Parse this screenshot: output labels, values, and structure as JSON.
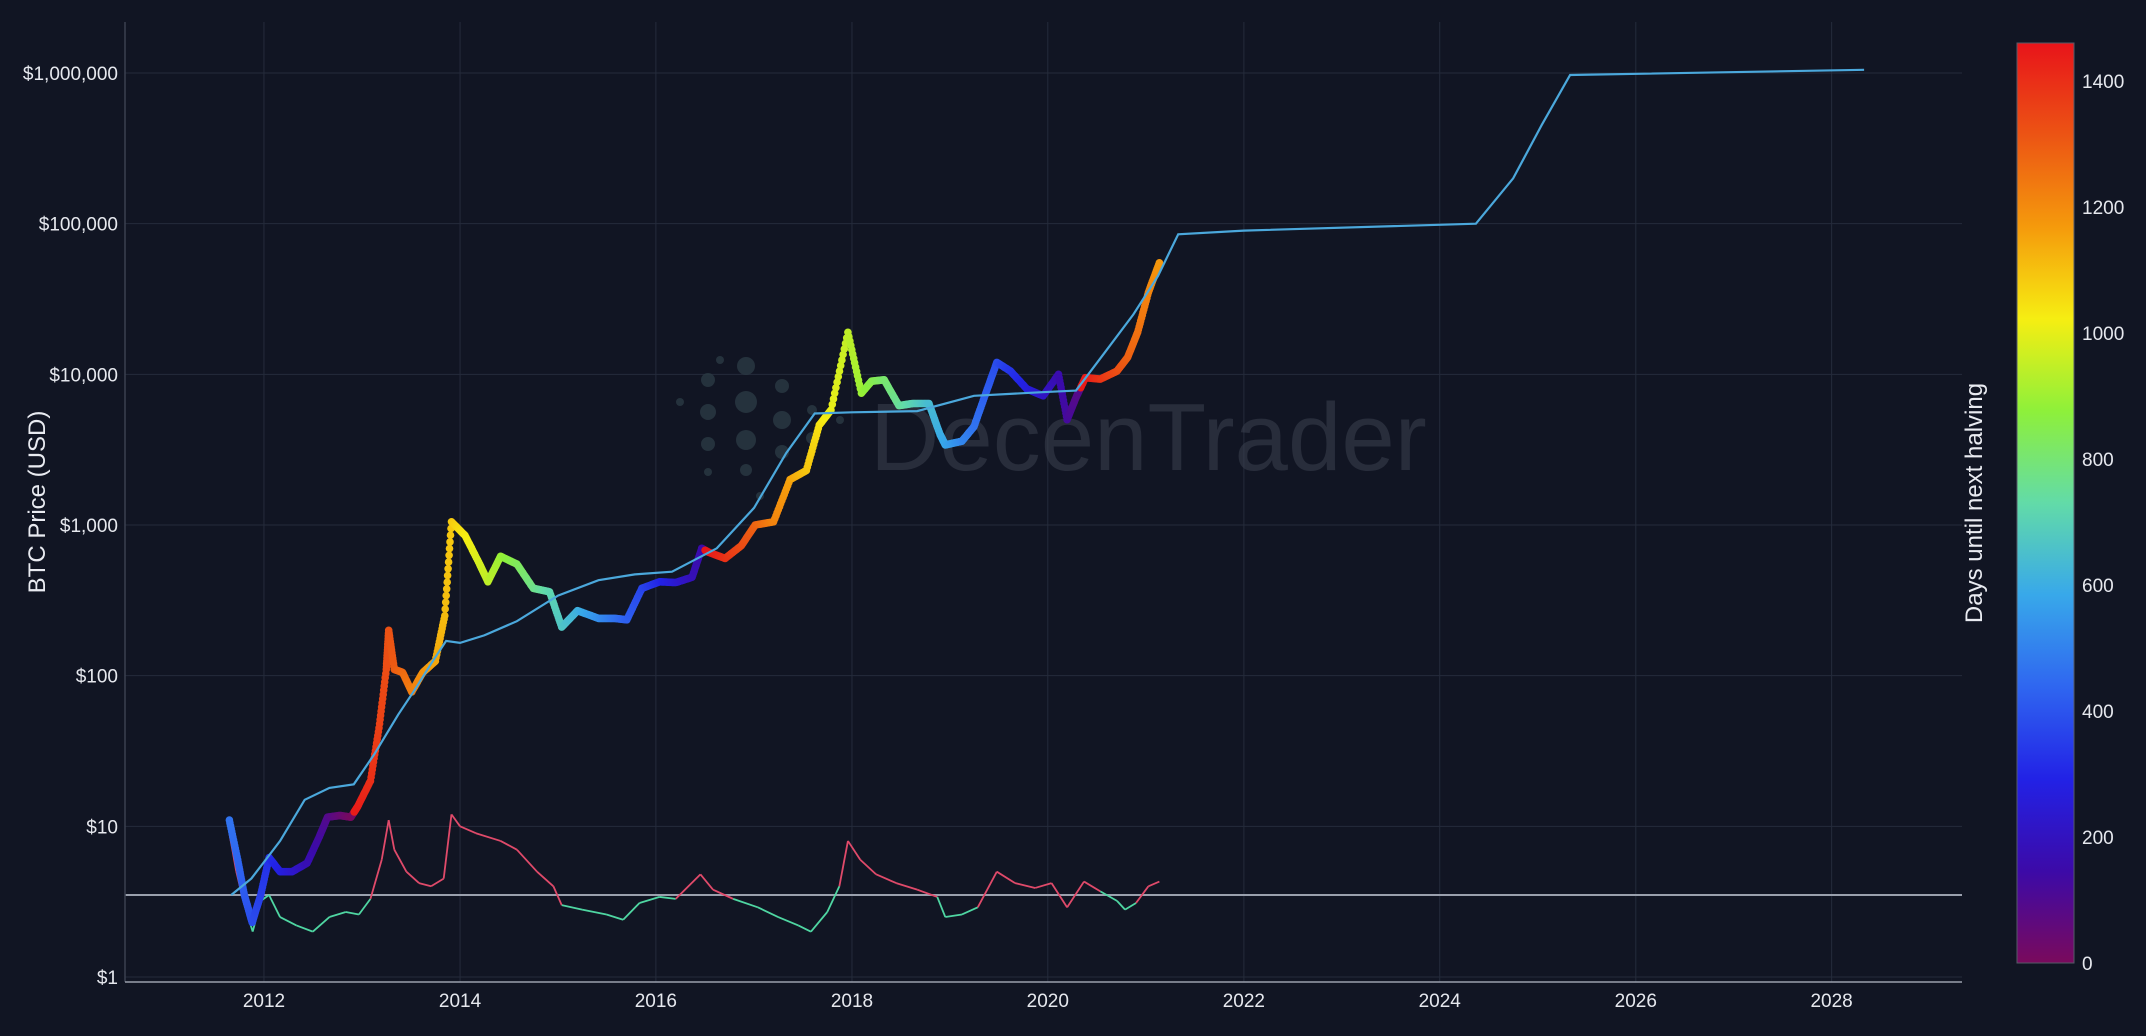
{
  "watermark": "DecenTrader",
  "chart_data": {
    "type": "scatter",
    "title": "",
    "ylabel": "BTC Price (USD)",
    "xlabel": "",
    "y_scale": "log",
    "ylim": [
      1,
      1000000
    ],
    "xlim": [
      "2010-08-01",
      "2029-05-01"
    ],
    "x_ticks": [
      "2012",
      "2014",
      "2016",
      "2018",
      "2020",
      "2022",
      "2024",
      "2026",
      "2028"
    ],
    "y_ticks": [
      "$1",
      "$10",
      "$100",
      "$1,000",
      "$10,000",
      "$100,000",
      "$1,000,000"
    ],
    "grid": true,
    "colorbar": {
      "title": "Days until next halving",
      "range": [
        0,
        1460
      ],
      "ticks": [
        "0",
        "200",
        "400",
        "600",
        "800",
        "1000",
        "1200",
        "1400"
      ],
      "colors": [
        "#7a0a5c",
        "#3c0aa8",
        "#2222e6",
        "#2f66f0",
        "#38a8ea",
        "#62dba8",
        "#8ef03a",
        "#f6ee12",
        "#f59a0c",
        "#ec5414",
        "#e8141a"
      ]
    },
    "reference_line": {
      "y": 3.5,
      "color": "#9aa0ad"
    },
    "series": [
      {
        "type": "scatter",
        "color_by": "days_until_next_halving",
        "points": [
          [
            "2011-08-25",
            11,
            470
          ],
          [
            "2011-09-25",
            6,
            440
          ],
          [
            "2011-10-20",
            3.5,
            415
          ],
          [
            "2011-11-18",
            2.3,
            385
          ],
          [
            "2011-12-20",
            3.5,
            355
          ],
          [
            "2012-01-20",
            6.2,
            320
          ],
          [
            "2012-03-01",
            5,
            280
          ],
          [
            "2012-04-15",
            5,
            235
          ],
          [
            "2012-06-10",
            5.7,
            175
          ],
          [
            "2012-07-25",
            8.5,
            130
          ],
          [
            "2012-08-25",
            11.5,
            95
          ],
          [
            "2012-10-10",
            11.8,
            50
          ],
          [
            "2012-11-20",
            11.5,
            10
          ],
          [
            "2012-12-15",
            13.5,
            1440
          ],
          [
            "2013-02-01",
            20,
            1400
          ],
          [
            "2013-03-05",
            45,
            1360
          ],
          [
            "2013-04-01",
            110,
            1330
          ],
          [
            "2013-04-10",
            200,
            1320
          ],
          [
            "2013-05-01",
            110,
            1300
          ],
          [
            "2013-06-01",
            105,
            1270
          ],
          [
            "2013-07-05",
            78,
            1230
          ],
          [
            "2013-08-15",
            105,
            1190
          ],
          [
            "2013-10-01",
            125,
            1145
          ],
          [
            "2013-11-05",
            250,
            1110
          ],
          [
            "2013-11-30",
            1050,
            1085
          ],
          [
            "2014-01-20",
            850,
            1030
          ],
          [
            "2014-03-15",
            550,
            975
          ],
          [
            "2014-04-15",
            420,
            945
          ],
          [
            "2014-06-01",
            620,
            895
          ],
          [
            "2014-08-01",
            550,
            835
          ],
          [
            "2014-10-01",
            380,
            775
          ],
          [
            "2014-12-01",
            360,
            715
          ],
          [
            "2015-01-15",
            210,
            670
          ],
          [
            "2015-03-15",
            270,
            610
          ],
          [
            "2015-06-01",
            240,
            530
          ],
          [
            "2015-08-01",
            240,
            470
          ],
          [
            "2015-09-15",
            235,
            425
          ],
          [
            "2015-11-10",
            380,
            370
          ],
          [
            "2016-01-15",
            420,
            305
          ],
          [
            "2016-03-15",
            415,
            245
          ],
          [
            "2016-05-15",
            450,
            185
          ],
          [
            "2016-06-20",
            700,
            150
          ],
          [
            "2016-07-15",
            660,
            1455
          ],
          [
            "2016-09-15",
            600,
            1395
          ],
          [
            "2016-11-15",
            730,
            1335
          ],
          [
            "2017-01-05",
            1000,
            1285
          ],
          [
            "2017-03-15",
            1050,
            1215
          ],
          [
            "2017-05-15",
            2000,
            1155
          ],
          [
            "2017-07-15",
            2300,
            1095
          ],
          [
            "2017-09-01",
            4600,
            1045
          ],
          [
            "2017-10-15",
            5800,
            1005
          ],
          [
            "2017-12-17",
            19000,
            945
          ],
          [
            "2018-02-05",
            7500,
            895
          ],
          [
            "2018-03-15",
            9000,
            855
          ],
          [
            "2018-05-01",
            9200,
            810
          ],
          [
            "2018-06-25",
            6200,
            755
          ],
          [
            "2018-08-15",
            6400,
            705
          ],
          [
            "2018-10-15",
            6400,
            640
          ],
          [
            "2018-11-25",
            4000,
            600
          ],
          [
            "2018-12-15",
            3400,
            580
          ],
          [
            "2019-02-15",
            3600,
            515
          ],
          [
            "2019-04-01",
            4500,
            470
          ],
          [
            "2019-05-15",
            7500,
            425
          ],
          [
            "2019-06-25",
            12000,
            385
          ],
          [
            "2019-08-15",
            10500,
            335
          ],
          [
            "2019-10-15",
            8000,
            275
          ],
          [
            "2019-12-15",
            7200,
            215
          ],
          [
            "2020-02-10",
            10000,
            160
          ],
          [
            "2020-03-13",
            5000,
            125
          ],
          [
            "2020-04-15",
            7000,
            90
          ],
          [
            "2020-05-20",
            9500,
            1445
          ],
          [
            "2020-07-15",
            9300,
            1390
          ],
          [
            "2020-09-15",
            10500,
            1330
          ],
          [
            "2020-10-25",
            13000,
            1290
          ],
          [
            "2020-12-01",
            19000,
            1255
          ],
          [
            "2021-01-10",
            35000,
            1215
          ],
          [
            "2021-02-20",
            55000,
            1175
          ]
        ]
      },
      {
        "type": "line",
        "name": "",
        "color": "#4ba8dc",
        "points": [
          [
            "2011-09-01",
            3.5
          ],
          [
            "2011-11-15",
            4.5
          ],
          [
            "2012-01-01",
            5.8
          ],
          [
            "2012-03-01",
            8
          ],
          [
            "2012-06-01",
            15
          ],
          [
            "2012-09-01",
            18
          ],
          [
            "2012-12-01",
            19
          ],
          [
            "2013-02-15",
            30
          ],
          [
            "2013-05-15",
            55
          ],
          [
            "2013-07-15",
            80
          ],
          [
            "2013-09-15",
            120
          ],
          [
            "2013-11-10",
            170
          ],
          [
            "2014-01-01",
            165
          ],
          [
            "2014-04-01",
            185
          ],
          [
            "2014-08-01",
            230
          ],
          [
            "2015-01-01",
            340
          ],
          [
            "2015-06-01",
            430
          ],
          [
            "2015-10-15",
            470
          ],
          [
            "2016-03-01",
            490
          ],
          [
            "2016-08-15",
            700
          ],
          [
            "2017-01-01",
            1300
          ],
          [
            "2017-05-01",
            3000
          ],
          [
            "2017-08-15",
            5500
          ],
          [
            "2018-01-01",
            5600
          ],
          [
            "2018-09-01",
            5700
          ],
          [
            "2019-04-01",
            7200
          ],
          [
            "2019-12-01",
            7600
          ],
          [
            "2020-04-15",
            7800
          ],
          [
            "2020-08-01",
            14000
          ],
          [
            "2020-11-15",
            25000
          ],
          [
            "2021-02-15",
            45000
          ],
          [
            "2021-05-01",
            85000
          ],
          [
            "2022-01-01",
            90000
          ],
          [
            "2024-05-15",
            100000
          ],
          [
            "2024-10-01",
            200000
          ],
          [
            "2025-01-15",
            450000
          ],
          [
            "2025-05-01",
            970000
          ],
          [
            "2028-05-01",
            1050000
          ]
        ]
      },
      {
        "type": "line",
        "name": "",
        "color_above": "#e04a6a",
        "color_below": "#4fd6a2",
        "threshold": 3.5,
        "points": [
          [
            "2011-08-25",
            9
          ],
          [
            "2011-09-20",
            5
          ],
          [
            "2011-10-20",
            3
          ],
          [
            "2011-11-20",
            2
          ],
          [
            "2011-12-20",
            3.2
          ],
          [
            "2012-01-20",
            3.5
          ],
          [
            "2012-03-01",
            2.5
          ],
          [
            "2012-05-01",
            2.2
          ],
          [
            "2012-07-01",
            2.0
          ],
          [
            "2012-09-01",
            2.5
          ],
          [
            "2012-11-01",
            2.7
          ],
          [
            "2012-12-20",
            2.6
          ],
          [
            "2013-02-01",
            3.3
          ],
          [
            "2013-03-15",
            6
          ],
          [
            "2013-04-10",
            11
          ],
          [
            "2013-05-01",
            7
          ],
          [
            "2013-06-15",
            5
          ],
          [
            "2013-08-01",
            4.2
          ],
          [
            "2013-09-15",
            4
          ],
          [
            "2013-11-01",
            4.5
          ],
          [
            "2013-11-30",
            12
          ],
          [
            "2014-01-01",
            10
          ],
          [
            "2014-03-01",
            9
          ],
          [
            "2014-06-01",
            8
          ],
          [
            "2014-08-01",
            7
          ],
          [
            "2014-10-15",
            5
          ],
          [
            "2014-12-15",
            4
          ],
          [
            "2015-01-15",
            3.0
          ],
          [
            "2015-04-01",
            2.8
          ],
          [
            "2015-07-01",
            2.6
          ],
          [
            "2015-09-01",
            2.4
          ],
          [
            "2015-11-01",
            3.1
          ],
          [
            "2016-01-15",
            3.4
          ],
          [
            "2016-03-15",
            3.3
          ],
          [
            "2016-06-15",
            4.8
          ],
          [
            "2016-08-01",
            3.8
          ],
          [
            "2016-10-15",
            3.3
          ],
          [
            "2017-01-15",
            2.9
          ],
          [
            "2017-04-01",
            2.5
          ],
          [
            "2017-06-15",
            2.2
          ],
          [
            "2017-08-01",
            2.0
          ],
          [
            "2017-10-01",
            2.7
          ],
          [
            "2017-11-15",
            4
          ],
          [
            "2017-12-17",
            8
          ],
          [
            "2018-02-01",
            6
          ],
          [
            "2018-04-01",
            4.8
          ],
          [
            "2018-06-15",
            4.2
          ],
          [
            "2018-09-01",
            3.8
          ],
          [
            "2018-11-15",
            3.4
          ],
          [
            "2018-12-15",
            2.5
          ],
          [
            "2019-02-15",
            2.6
          ],
          [
            "2019-04-15",
            2.9
          ],
          [
            "2019-06-25",
            5
          ],
          [
            "2019-09-01",
            4.2
          ],
          [
            "2019-11-15",
            3.9
          ],
          [
            "2020-01-15",
            4.2
          ],
          [
            "2020-03-13",
            2.9
          ],
          [
            "2020-05-15",
            4.3
          ],
          [
            "2020-07-15",
            3.7
          ],
          [
            "2020-09-15",
            3.2
          ],
          [
            "2020-10-15",
            2.8
          ],
          [
            "2020-11-25",
            3.1
          ],
          [
            "2021-01-10",
            4
          ],
          [
            "2021-02-20",
            4.3
          ]
        ]
      }
    ]
  }
}
